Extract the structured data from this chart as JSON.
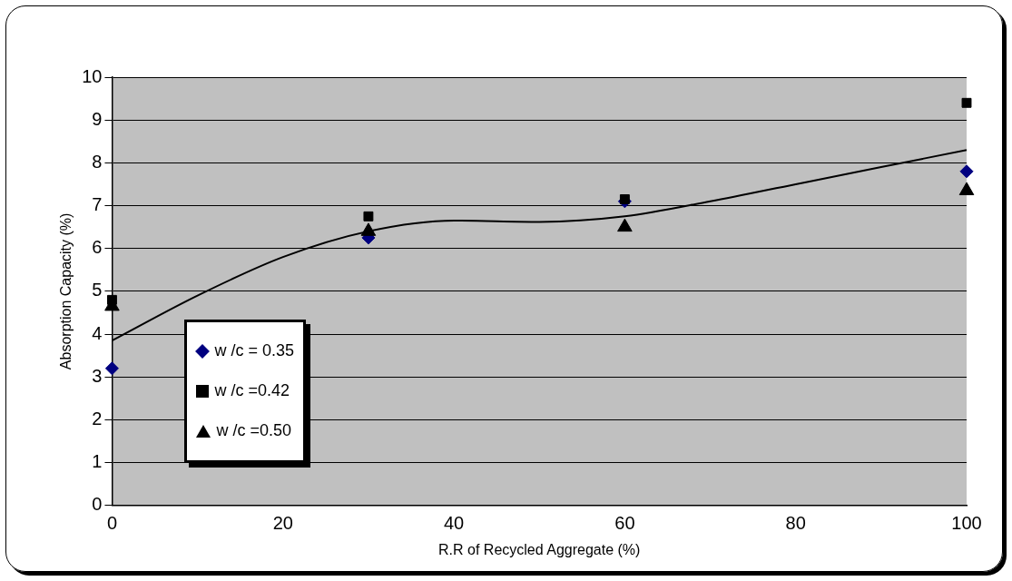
{
  "chart_data": {
    "type": "scatter",
    "xlabel": "R.R of Recycled Aggregate (%)",
    "ylabel": "Absorption Capacity (%)",
    "xlim": [
      0,
      100
    ],
    "xticks": [
      0,
      20,
      40,
      60,
      80,
      100
    ],
    "ylim": [
      0,
      10
    ],
    "yticks": [
      0,
      1,
      2,
      3,
      4,
      5,
      6,
      7,
      8,
      9,
      10
    ],
    "grid": "y",
    "legend": "bottom left",
    "series": [
      {
        "name": "w /c = 0.35",
        "color": "#000080",
        "marker": "diamond",
        "x": [
          0,
          30,
          60,
          100
        ],
        "values": [
          3.2,
          6.25,
          7.1,
          7.8
        ]
      },
      {
        "name": "w /c =0.42",
        "color": "#000000",
        "marker": "square",
        "x": [
          0,
          30,
          60,
          100
        ],
        "values": [
          4.8,
          6.75,
          7.15,
          9.4
        ]
      },
      {
        "name": "w /c =0.50",
        "color": "#000000",
        "marker": "triangle",
        "x": [
          0,
          30,
          60,
          100
        ],
        "values": [
          4.65,
          6.4,
          6.5,
          7.35
        ]
      },
      {
        "type": "line",
        "color": "#000000",
        "marker": "none",
        "x": [
          0,
          10,
          20,
          30,
          40,
          50,
          60,
          70,
          80,
          90,
          100
        ],
        "values": [
          3.85,
          4.9,
          5.8,
          6.4,
          6.65,
          6.62,
          6.75,
          7.1,
          7.5,
          7.9,
          8.3
        ]
      }
    ]
  }
}
